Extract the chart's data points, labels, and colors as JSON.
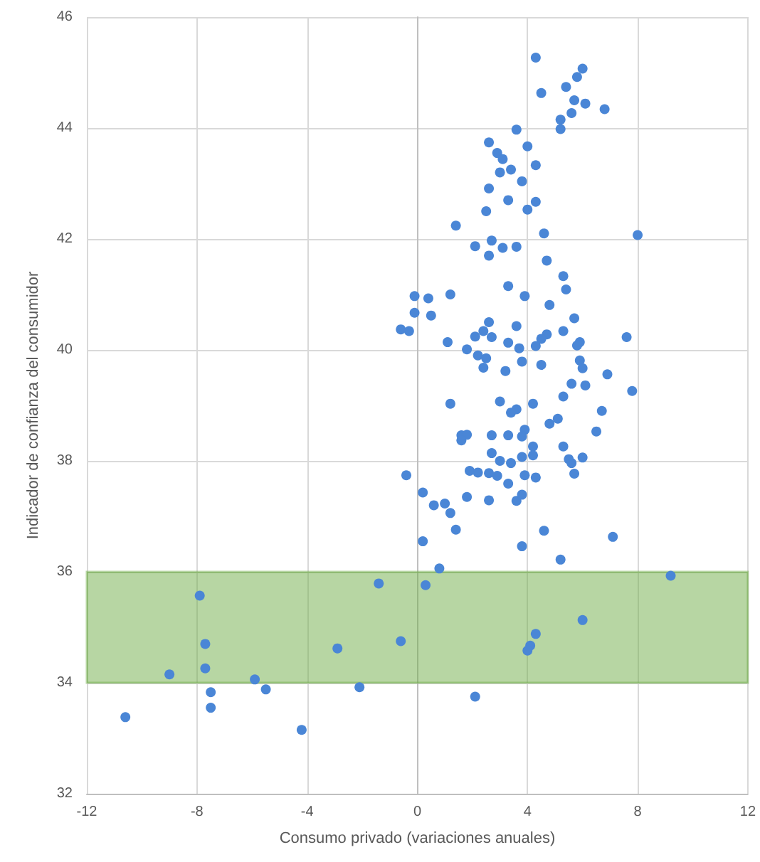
{
  "chart_data": {
    "type": "scatter",
    "xlabel": "Consumo privado (variaciones anuales)",
    "ylabel": "Indicador de confianza del consumidor",
    "x": [
      4.3,
      6.0,
      5.8,
      5.4,
      4.5,
      5.7,
      6.1,
      6.8,
      5.6,
      5.2,
      5.2,
      3.6,
      2.6,
      4.0,
      2.9,
      3.1,
      4.3,
      3.4,
      3.0,
      3.8,
      2.6,
      3.3,
      4.3,
      2.5,
      4.0,
      1.4,
      4.6,
      8.0,
      2.1,
      2.7,
      3.1,
      3.6,
      2.6,
      4.7,
      5.3,
      3.3,
      5.4,
      3.9,
      4.8,
      -0.1,
      0.4,
      1.2,
      -0.1,
      0.5,
      5.7,
      2.6,
      3.6,
      -0.6,
      -0.3,
      2.4,
      5.3,
      2.1,
      2.7,
      4.7,
      4.5,
      7.6,
      1.1,
      3.3,
      3.7,
      4.3,
      5.9,
      5.8,
      1.8,
      2.2,
      2.5,
      2.4,
      3.8,
      4.5,
      5.9,
      6.0,
      3.2,
      6.9,
      5.6,
      6.1,
      7.8,
      5.3,
      1.2,
      3.0,
      4.2,
      3.6,
      3.4,
      6.7,
      5.1,
      4.8,
      6.5,
      3.9,
      1.6,
      1.8,
      1.6,
      2.7,
      3.3,
      3.8,
      5.3,
      4.2,
      2.7,
      4.2,
      3.8,
      5.5,
      6.0,
      3.0,
      3.4,
      5.6,
      -0.4,
      1.9,
      2.2,
      2.6,
      2.9,
      3.9,
      4.3,
      5.7,
      3.3,
      0.2,
      0.6,
      1.0,
      1.2,
      1.8,
      2.6,
      3.6,
      3.8,
      1.4,
      4.6,
      7.1,
      0.2,
      3.8,
      5.2,
      0.8,
      9.2,
      0.3,
      -0.6,
      4.3,
      6.0,
      4.1,
      4.0,
      2.1,
      -1.4,
      -7.9,
      -7.7,
      -7.7,
      -9.0,
      -2.9,
      -5.9,
      -5.5,
      -2.1,
      -7.5,
      -7.5,
      -10.6,
      -4.2
    ],
    "values": [
      45.27,
      45.07,
      44.92,
      44.74,
      44.63,
      44.5,
      44.44,
      44.34,
      44.27,
      44.15,
      43.98,
      43.97,
      43.74,
      43.67,
      43.55,
      43.44,
      43.33,
      43.25,
      43.2,
      43.04,
      42.91,
      42.7,
      42.67,
      42.5,
      42.53,
      42.24,
      42.1,
      42.07,
      41.87,
      41.97,
      41.84,
      41.86,
      41.7,
      41.61,
      41.33,
      41.15,
      41.09,
      40.97,
      40.81,
      40.97,
      40.93,
      41.0,
      40.67,
      40.62,
      40.57,
      40.5,
      40.43,
      40.37,
      40.34,
      40.34,
      40.34,
      40.24,
      40.23,
      40.28,
      40.2,
      40.23,
      40.14,
      40.13,
      40.03,
      40.07,
      40.14,
      40.08,
      40.01,
      39.9,
      39.85,
      39.68,
      39.79,
      39.73,
      39.81,
      39.67,
      39.62,
      39.56,
      39.39,
      39.36,
      39.26,
      39.16,
      39.03,
      39.07,
      39.03,
      38.93,
      38.87,
      38.9,
      38.76,
      38.67,
      38.53,
      38.56,
      38.46,
      38.47,
      38.37,
      38.46,
      38.46,
      38.44,
      38.26,
      38.26,
      38.14,
      38.1,
      38.07,
      38.03,
      38.06,
      38.0,
      37.96,
      37.96,
      37.74,
      37.82,
      37.79,
      37.78,
      37.73,
      37.74,
      37.7,
      37.77,
      37.59,
      37.43,
      37.2,
      37.23,
      37.06,
      37.35,
      37.29,
      37.28,
      37.39,
      36.76,
      36.74,
      36.63,
      36.55,
      36.46,
      36.22,
      36.06,
      35.93,
      35.76,
      34.75,
      34.88,
      35.13,
      34.67,
      34.58,
      33.75,
      35.79,
      35.57,
      34.7,
      34.26,
      34.15,
      34.62,
      34.06,
      33.88,
      33.92,
      33.83,
      33.55,
      33.38,
      33.15
    ],
    "color": "#4a86d6",
    "marker": "circle",
    "xlim": [
      -12,
      12
    ],
    "xticks": [
      -12,
      -8,
      -4,
      0,
      4,
      8,
      12
    ],
    "ylim": [
      32,
      46
    ],
    "yticks": [
      32,
      34,
      36,
      38,
      40,
      42,
      44,
      46
    ],
    "grid": true,
    "bands": [
      {
        "axis": "y",
        "from": 34,
        "to": 36,
        "color": "#70ad47"
      }
    ]
  }
}
